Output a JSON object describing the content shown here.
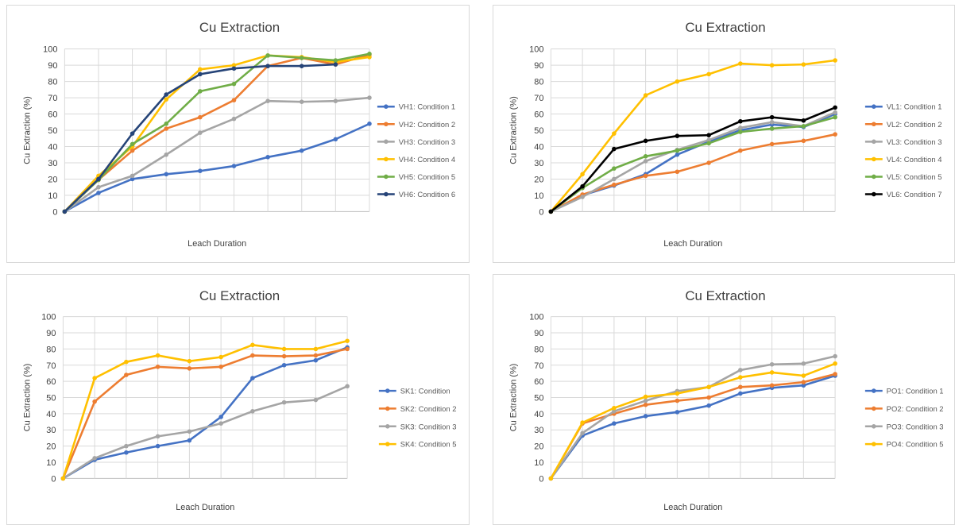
{
  "chart_data": [
    {
      "type": "line",
      "title": "Cu Extraction",
      "xlabel": "Leach Duration",
      "ylabel": "Cu Extraction (%)",
      "ylim": [
        0,
        100
      ],
      "yticks": [
        "0",
        "10",
        "20",
        "30",
        "40",
        "50",
        "60",
        "70",
        "80",
        "90",
        "100"
      ],
      "grid": true,
      "legend": "right",
      "series": [
        {
          "name": "VH1: Condition 1",
          "color": "#4472c4",
          "values": [
            0,
            11.5,
            20,
            23,
            25,
            28,
            33.5,
            37.5,
            44.5,
            54
          ]
        },
        {
          "name": "VH2: Condition 2",
          "color": "#ed7d31",
          "values": [
            0,
            19.5,
            37.5,
            51,
            58,
            68.5,
            89.5,
            94.5,
            90.5,
            96.5
          ]
        },
        {
          "name": "VH3: Condition 3",
          "color": "#a5a5a5",
          "values": [
            0,
            15,
            22,
            35,
            48.5,
            57,
            68,
            67.5,
            68,
            70
          ]
        },
        {
          "name": "VH4: Condition 4",
          "color": "#ffc000",
          "values": [
            0,
            22,
            40,
            69,
            87.5,
            90,
            96,
            95,
            92,
            95
          ]
        },
        {
          "name": "VH5: Condition 5",
          "color": "#70ad47",
          "values": [
            0,
            19.5,
            41.5,
            54,
            74,
            78.5,
            96,
            94.5,
            93,
            97
          ]
        },
        {
          "name": "VH6: Condition 6",
          "color": "#264478",
          "values": [
            0,
            20,
            48,
            72,
            84.5,
            88,
            89.5,
            89.5,
            90.5
          ]
        }
      ]
    },
    {
      "type": "line",
      "title": "Cu Extraction",
      "xlabel": "Leach Duration",
      "ylabel": "Cu Extraction (%)",
      "ylim": [
        0,
        100
      ],
      "yticks": [
        "0",
        "10",
        "20",
        "30",
        "40",
        "50",
        "60",
        "70",
        "80",
        "90",
        "100"
      ],
      "grid": true,
      "legend": "right",
      "series": [
        {
          "name": "VL1: Condition 1",
          "color": "#4472c4",
          "values": [
            0,
            10,
            16,
            23,
            35,
            43,
            50,
            53.5,
            52,
            60
          ]
        },
        {
          "name": "VL2: Condition 2",
          "color": "#ed7d31",
          "values": [
            0,
            10.5,
            16.5,
            22,
            24.5,
            30,
            37.5,
            41.5,
            43.5,
            47.5
          ]
        },
        {
          "name": "VL3: Condition 3",
          "color": "#a5a5a5",
          "values": [
            0,
            9,
            20,
            31,
            38,
            44,
            51.5,
            55,
            52.5,
            61
          ]
        },
        {
          "name": "VL4: Condition 4",
          "color": "#ffc000",
          "values": [
            0,
            23,
            48,
            71.5,
            80,
            84.5,
            91,
            90,
            90.5,
            93
          ]
        },
        {
          "name": "VL5: Condition 5",
          "color": "#70ad47",
          "values": [
            0,
            14.5,
            26.5,
            34,
            37.5,
            42,
            49,
            51,
            52.5,
            58
          ]
        },
        {
          "name": "VL6: Condition 7",
          "color": "#000000",
          "values": [
            0,
            15.5,
            38.5,
            43.5,
            46.5,
            47,
            55.5,
            58,
            56,
            64
          ]
        }
      ]
    },
    {
      "type": "line",
      "title": "Cu Extraction",
      "xlabel": "Leach Duration",
      "ylabel": "Cu Extraction (%)",
      "ylim": [
        0,
        100
      ],
      "yticks": [
        "0",
        "10",
        "20",
        "30",
        "40",
        "50",
        "60",
        "70",
        "80",
        "90",
        "100"
      ],
      "grid": true,
      "legend": "right",
      "series": [
        {
          "name": "SK1: Condition",
          "color": "#4472c4",
          "values": [
            0,
            11.5,
            16,
            20,
            23.5,
            38,
            62,
            70,
            73,
            81
          ]
        },
        {
          "name": "SK2: Condition 2",
          "color": "#ed7d31",
          "values": [
            0,
            47.5,
            64,
            69,
            68,
            69,
            76,
            75.5,
            76,
            80
          ]
        },
        {
          "name": "SK3: Condition 3",
          "color": "#a5a5a5",
          "values": [
            0,
            12.5,
            20,
            26,
            29,
            34,
            41.5,
            47,
            48.5,
            57
          ]
        },
        {
          "name": "SK4: Condition 5",
          "color": "#ffc000",
          "values": [
            0,
            62,
            72,
            76,
            72.5,
            75,
            82.5,
            80,
            80,
            85
          ]
        }
      ]
    },
    {
      "type": "line",
      "title": "Cu Extraction",
      "xlabel": "Leach Duration",
      "ylabel": "Cu Extraction (%)",
      "ylim": [
        0,
        100
      ],
      "yticks": [
        "0",
        "10",
        "20",
        "30",
        "40",
        "50",
        "60",
        "70",
        "80",
        "90",
        "100"
      ],
      "grid": true,
      "legend": "right",
      "series": [
        {
          "name": "PO1: Condition 1",
          "color": "#4472c4",
          "values": [
            0,
            26.5,
            34,
            38.5,
            41,
            45,
            52.5,
            56,
            57.5,
            63.5
          ]
        },
        {
          "name": "PO2: Condition 2",
          "color": "#ed7d31",
          "values": [
            0,
            34,
            40,
            45.5,
            48,
            50,
            56.5,
            57.5,
            59.5,
            64.5
          ]
        },
        {
          "name": "PO3: Condition 3",
          "color": "#a5a5a5",
          "values": [
            0,
            28,
            41.5,
            48,
            54,
            56.5,
            67,
            70.5,
            71,
            75.5
          ]
        },
        {
          "name": "PO4: Condition 5",
          "color": "#ffc000",
          "values": [
            0,
            34.5,
            43.5,
            50.5,
            52.5,
            56.5,
            62.5,
            65.5,
            63.5,
            71
          ]
        }
      ]
    }
  ]
}
